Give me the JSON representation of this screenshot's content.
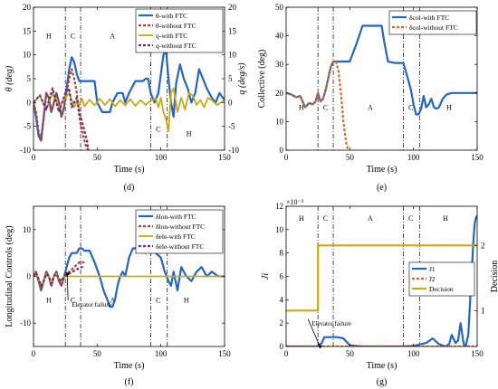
{
  "figure": {
    "panel_labels": [
      "(d)",
      "(e)",
      "(f)",
      "(g)"
    ]
  },
  "chart_data": [
    {
      "id": "d",
      "type": "line",
      "panel_label": "(d)",
      "xlabel": "Time (s)",
      "ylabel": "θ (deg)",
      "ylabel_right": "q (deg/s)",
      "xlim": [
        0,
        150
      ],
      "ylim": [
        -10,
        20
      ],
      "ylim_right": [
        -10,
        20
      ],
      "xticks": [
        "0",
        "50",
        "100",
        "150"
      ],
      "yticks": [
        "-10",
        "-5",
        "0",
        "5",
        "10",
        "15",
        "20"
      ],
      "yticks_right": [
        "-10",
        "-5",
        "0",
        "5",
        "10",
        "15",
        "20"
      ],
      "grid": false,
      "legend_position": "top-right",
      "phase_lines": [
        25,
        37,
        92,
        105
      ],
      "phase_labels": [
        {
          "text": "H",
          "x": 12,
          "y": 14
        },
        {
          "text": "C",
          "x": 31,
          "y": 14
        },
        {
          "text": "A",
          "x": 62,
          "y": 14
        },
        {
          "text": "C",
          "x": 98,
          "y": -5.5
        },
        {
          "text": "H",
          "x": 122,
          "y": -6.5
        }
      ],
      "series": [
        {
          "name": "θ-with FTC",
          "color": "#2166c6",
          "dash": "solid",
          "width": 2.2,
          "x": [
            0,
            2,
            4,
            6,
            8,
            10,
            12,
            14,
            16,
            18,
            20,
            22,
            24,
            26,
            28,
            30,
            32,
            34,
            36,
            38,
            40,
            44,
            48,
            50,
            54,
            60,
            62,
            66,
            70,
            72,
            75,
            80,
            84,
            86,
            88,
            90,
            92,
            95,
            98,
            100,
            102,
            104,
            106,
            108,
            110,
            112,
            115,
            118,
            121,
            124,
            127,
            130,
            133,
            136,
            140,
            143,
            146,
            150
          ],
          "y": [
            0,
            -3,
            -7,
            -8,
            -3,
            2,
            1,
            -2,
            0,
            2,
            0,
            -3,
            -1,
            3,
            7,
            9.5,
            8.5,
            6,
            4.5,
            4.5,
            4.5,
            4.5,
            4.5,
            0,
            -2,
            -2,
            0,
            2,
            2,
            0,
            2,
            4.5,
            4.5,
            4.5,
            5,
            5,
            2,
            0,
            2,
            6,
            10,
            11,
            5,
            0,
            -3,
            4,
            8,
            5,
            3,
            0,
            2,
            7,
            5,
            3,
            1,
            0,
            2,
            0.5
          ]
        },
        {
          "name": "θ-without FTC",
          "color": "#c0392b",
          "dash": "3,2",
          "width": 2.2,
          "x": [
            0,
            2,
            4,
            6,
            8,
            10,
            12,
            14,
            16,
            18,
            20,
            22,
            24,
            26,
            28,
            30,
            32,
            34,
            36,
            38,
            40,
            41,
            42,
            43
          ],
          "y": [
            0,
            -2,
            -6,
            -8,
            -3,
            2,
            1,
            -2,
            0,
            2,
            0,
            -3,
            -1,
            2,
            5,
            7,
            5,
            2,
            -3,
            -6,
            -8,
            -9,
            -9.5,
            -10
          ]
        },
        {
          "name": "q-with FTC",
          "color": "#c8aa10",
          "dash": "solid",
          "width": 1.8,
          "x": [
            0,
            5,
            10,
            15,
            20,
            25,
            28,
            30,
            32,
            34,
            36,
            38,
            40,
            44,
            48,
            52,
            56,
            60,
            64,
            68,
            72,
            76,
            80,
            84,
            88,
            92,
            96,
            98,
            100,
            102,
            104,
            106,
            108,
            110,
            113,
            116,
            119,
            122,
            125,
            128,
            131,
            134,
            137,
            140,
            144,
            150
          ],
          "y": [
            0,
            1.5,
            -1.5,
            2,
            -1,
            1,
            2,
            0.5,
            -1,
            0,
            -0.5,
            0.8,
            -0.8,
            0.6,
            -0.6,
            0.8,
            -0.5,
            0.7,
            -0.8,
            0.5,
            -0.6,
            0.7,
            -0.7,
            0.5,
            -0.5,
            0.4,
            0.8,
            -1,
            1,
            -2,
            -3.5,
            -6,
            2,
            3,
            -2,
            1,
            -1.5,
            2,
            1.5,
            -0.5,
            0.5,
            -1,
            1,
            0.5,
            -0.5,
            0.5
          ]
        },
        {
          "name": "q-without FTC",
          "color": "#6d2c7c",
          "dash": "3,2",
          "width": 2.2,
          "x": [
            0,
            5,
            10,
            15,
            20,
            25,
            28,
            30,
            32,
            34,
            36,
            38,
            40,
            41,
            42,
            43
          ],
          "y": [
            0,
            1.5,
            -1.5,
            3,
            -2,
            2,
            3,
            -1,
            0,
            1,
            -2,
            -4,
            -6,
            -7,
            -8,
            -10
          ]
        }
      ]
    },
    {
      "id": "e",
      "type": "line",
      "panel_label": "(e)",
      "xlabel": "Time (s)",
      "ylabel": "Collective (deg)",
      "xlim": [
        0,
        150
      ],
      "ylim": [
        0,
        50
      ],
      "xticks": [
        "0",
        "50",
        "100",
        "150"
      ],
      "yticks": [
        "0",
        "10",
        "20",
        "30",
        "40",
        "50"
      ],
      "grid": false,
      "legend_position": "top-right",
      "phase_lines": [
        25,
        37,
        92,
        105
      ],
      "phase_labels": [
        {
          "text": "H",
          "x": 12,
          "y": 15
        },
        {
          "text": "C",
          "x": 31,
          "y": 15
        },
        {
          "text": "A",
          "x": 66,
          "y": 15
        },
        {
          "text": "C",
          "x": 98,
          "y": 15
        },
        {
          "text": "H",
          "x": 128,
          "y": 15
        }
      ],
      "series": [
        {
          "name": "δcol-with FTC",
          "color": "#2166c6",
          "dash": "solid",
          "width": 2.2,
          "x": [
            0,
            4,
            8,
            11,
            13,
            15,
            18,
            21,
            23,
            25,
            27,
            29,
            31,
            33,
            35,
            37,
            40,
            42,
            45,
            50,
            55,
            60,
            62,
            65,
            70,
            75,
            77,
            80,
            85,
            90,
            92,
            95,
            98,
            100,
            102,
            104,
            106,
            108,
            110,
            112,
            114,
            116,
            118,
            120,
            123,
            126,
            130,
            140,
            150
          ],
          "y": [
            20,
            19.5,
            18.5,
            19,
            17,
            15,
            16.5,
            16,
            17,
            20,
            17,
            18,
            21,
            25,
            29,
            31,
            31,
            31,
            31,
            31,
            37,
            43.5,
            43.5,
            43.5,
            43.5,
            43.5,
            38,
            31,
            30.5,
            30.5,
            30.5,
            26,
            21,
            16,
            12.5,
            12.5,
            14.5,
            19,
            15,
            16,
            18,
            15,
            14.5,
            15,
            18,
            19.5,
            20,
            20,
            20
          ]
        },
        {
          "name": "δcol-without FTC",
          "color": "#d4691e",
          "dash": "3,2",
          "width": 2.2,
          "x": [
            0,
            4,
            8,
            11,
            13,
            15,
            18,
            21,
            23,
            25,
            27,
            29,
            31,
            33,
            35,
            37,
            39,
            41,
            43,
            45,
            47,
            48,
            49
          ],
          "y": [
            20,
            19.5,
            18.5,
            19,
            17,
            15,
            16.5,
            16,
            17,
            20,
            17,
            18,
            21,
            25,
            29,
            31,
            31,
            28,
            20,
            10,
            3,
            1,
            0
          ]
        }
      ]
    },
    {
      "id": "f",
      "type": "line",
      "panel_label": "(f)",
      "xlabel": "Time (s)",
      "ylabel": "Longitudinal Controls (deg)",
      "xlim": [
        0,
        150
      ],
      "ylim": [
        -15,
        15
      ],
      "xticks": [
        "0",
        "50",
        "100",
        "150"
      ],
      "yticks": [
        "-10",
        "0",
        "10"
      ],
      "grid": false,
      "legend_position": "top-right",
      "phase_lines": [
        25,
        37,
        92,
        105
      ],
      "phase_labels": [
        {
          "text": "H",
          "x": 12,
          "y": -5
        },
        {
          "text": "C",
          "x": 31,
          "y": -5
        },
        {
          "text": "A",
          "x": 62,
          "y": -5
        },
        {
          "text": "C",
          "x": 98,
          "y": -5
        },
        {
          "text": "H",
          "x": 120,
          "y": -5
        }
      ],
      "annotation": {
        "text": "Elevator failure",
        "arrow_to": [
          25,
          1
        ],
        "text_at": [
          30,
          -6.5
        ]
      },
      "series": [
        {
          "name": "δlon-with FTC",
          "color": "#2166c6",
          "dash": "solid",
          "width": 2.2,
          "x": [
            0,
            2,
            4,
            6,
            8,
            10,
            12,
            14,
            16,
            18,
            20,
            22,
            24,
            26,
            28,
            30,
            32,
            34,
            36,
            38,
            40,
            44,
            48,
            52,
            55,
            58,
            60,
            62,
            64,
            66,
            68,
            70,
            72,
            75,
            78,
            80,
            84,
            88,
            92,
            96,
            100,
            103,
            106,
            108,
            110,
            113,
            116,
            120,
            124,
            128,
            132,
            136,
            140,
            145,
            150
          ],
          "y": [
            0,
            1,
            -1,
            -3,
            -1,
            1,
            0,
            -2,
            0,
            1,
            -1,
            -2,
            0,
            2,
            4,
            5,
            5,
            5,
            6,
            6,
            5.5,
            5.5,
            3,
            0,
            -3,
            -5,
            -6.5,
            -6.5,
            -5,
            -2,
            0,
            1,
            0,
            4,
            6,
            6,
            7,
            5,
            7,
            5,
            4,
            1,
            -1,
            -2,
            1,
            -3,
            2,
            0,
            -1,
            1,
            2,
            0,
            1,
            0,
            0
          ]
        },
        {
          "name": "δlon-without FTC",
          "color": "#c0392b",
          "dash": "3,2",
          "width": 2.2,
          "x": [
            0,
            2,
            4,
            6,
            8,
            10,
            12,
            14,
            16,
            18,
            20,
            22,
            24,
            26,
            28,
            30,
            32,
            34,
            36,
            38,
            40
          ],
          "y": [
            0,
            1,
            -1,
            -3,
            -1,
            1,
            0,
            -2,
            0,
            1,
            -1,
            -2,
            0,
            0.5,
            1,
            1.5,
            2,
            2.5,
            3,
            3,
            3
          ]
        },
        {
          "name": "δele-with FTC",
          "color": "#c8aa10",
          "dash": "solid",
          "width": 1.8,
          "x": [
            0,
            2,
            4,
            6,
            8,
            10,
            12,
            14,
            16,
            18,
            20,
            22,
            24,
            25,
            30,
            40,
            60,
            80,
            100,
            120,
            140,
            150
          ],
          "y": [
            0,
            0.8,
            -0.5,
            -2,
            -1,
            0.5,
            0,
            -1.5,
            0,
            0.5,
            -0.5,
            -1,
            0,
            0,
            0,
            0,
            0,
            0,
            0,
            0,
            0,
            0
          ]
        },
        {
          "name": "δele-without FTC",
          "color": "#6d2c7c",
          "dash": "3,2",
          "width": 2.2,
          "x": [
            0,
            2,
            4,
            6,
            8,
            10,
            12,
            14,
            16,
            18,
            20,
            22,
            24,
            26,
            28,
            30,
            32,
            34,
            36,
            38,
            40
          ],
          "y": [
            0,
            0.8,
            -0.5,
            -2,
            -1,
            0.5,
            0,
            -1.5,
            0,
            0.5,
            -0.5,
            -1,
            0,
            0.3,
            0.6,
            0.9,
            1.2,
            1.5,
            1.8,
            2,
            2
          ]
        }
      ]
    },
    {
      "id": "g",
      "type": "line",
      "panel_label": "(g)",
      "xlabel": "Time (s)",
      "ylabel": "Ji",
      "ylabel_right": "Decision",
      "y_exponent": "×10⁻³",
      "xlim": [
        0,
        150
      ],
      "ylim": [
        0,
        12
      ],
      "ylim_right": [
        0.45,
        2.6
      ],
      "xticks": [
        "0",
        "50",
        "100",
        "150"
      ],
      "yticks": [
        "0",
        "2",
        "4",
        "6",
        "8",
        "10",
        "12"
      ],
      "yticks_right": [
        "1",
        "2"
      ],
      "grid": false,
      "legend_position": "middle-right",
      "phase_lines": [
        25,
        37,
        92,
        105
      ],
      "phase_labels": [
        {
          "text": "H",
          "x": 12,
          "y": 11
        },
        {
          "text": "C",
          "x": 31,
          "y": 11
        },
        {
          "text": "A",
          "x": 66,
          "y": 11
        },
        {
          "text": "C",
          "x": 98,
          "y": 11
        },
        {
          "text": "H",
          "x": 125,
          "y": 11
        }
      ],
      "annotation": {
        "text": "Elevator failure",
        "arrow_to": [
          25,
          0.2
        ],
        "text_at": [
          20,
          1.8
        ]
      },
      "series": [
        {
          "name": "J1",
          "color": "#2166c6",
          "dash": "solid",
          "width": 2.2,
          "x": [
            0,
            25,
            28,
            30,
            35,
            40,
            45,
            50,
            60,
            70,
            80,
            90,
            100,
            110,
            115,
            120,
            125,
            128,
            130,
            133,
            135,
            137,
            139,
            140,
            141,
            142,
            143,
            144,
            145,
            146,
            147,
            148,
            149,
            150
          ],
          "y": [
            0,
            0,
            0.3,
            0.8,
            0.8,
            0.8,
            0.7,
            0.1,
            0,
            0,
            0,
            0,
            0.05,
            0.3,
            0.7,
            0.2,
            0,
            0.2,
            1,
            0.3,
            0.5,
            2,
            0.5,
            0,
            0,
            0.5,
            1,
            3,
            5,
            7,
            9,
            10.5,
            11,
            11.2
          ]
        },
        {
          "name": "J2",
          "color": "#d4691e",
          "dash": "3,2",
          "width": 2.2,
          "x": [
            0,
            150
          ],
          "y": [
            0,
            0
          ]
        },
        {
          "name": "Decision",
          "color": "#c8aa10",
          "dash": "solid",
          "width": 2.2,
          "axis": "right",
          "x": [
            0,
            25,
            25,
            150
          ],
          "y": [
            1,
            1,
            2,
            2
          ]
        }
      ]
    }
  ]
}
